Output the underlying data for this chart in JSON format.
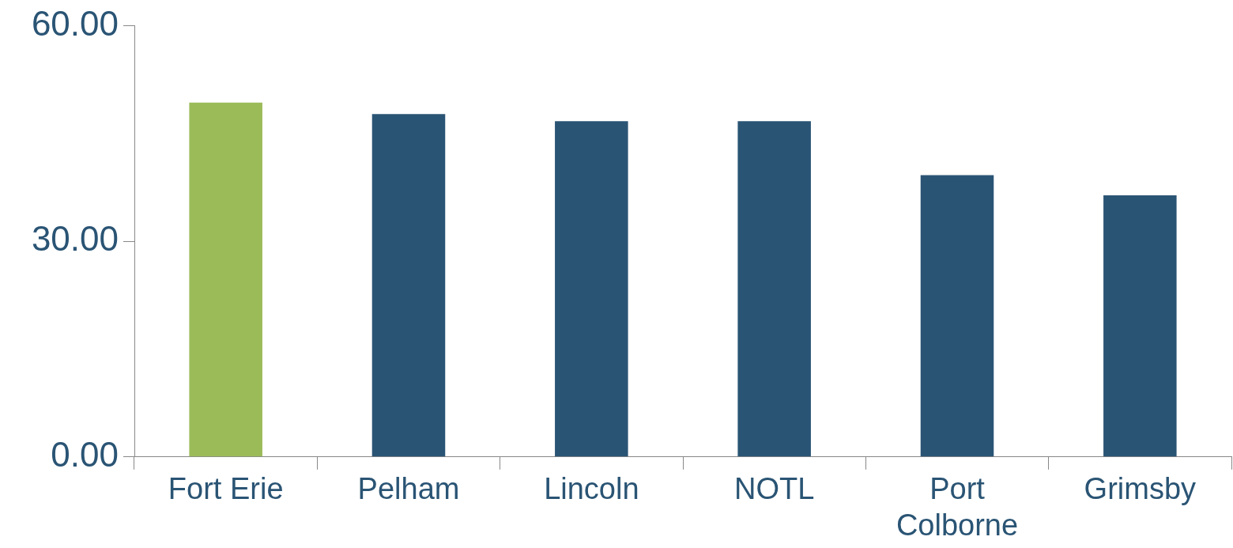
{
  "chart_data": {
    "type": "bar",
    "categories": [
      "Fort Erie",
      "Pelham",
      "Lincoln",
      "NOTL",
      "Port Colborne",
      "Grimsby"
    ],
    "values": [
      49.3,
      47.7,
      46.7,
      46.7,
      39.2,
      36.4
    ],
    "colors": [
      "#9bbb59",
      "#2a5474",
      "#2a5474",
      "#2a5474",
      "#2a5474",
      "#2a5474"
    ],
    "ylim": [
      0,
      60
    ],
    "yticks": [
      {
        "value": 0,
        "label": "0.00"
      },
      {
        "value": 30,
        "label": "30.00"
      },
      {
        "value": 60,
        "label": "60.00"
      }
    ],
    "grid": false,
    "legend": false
  }
}
